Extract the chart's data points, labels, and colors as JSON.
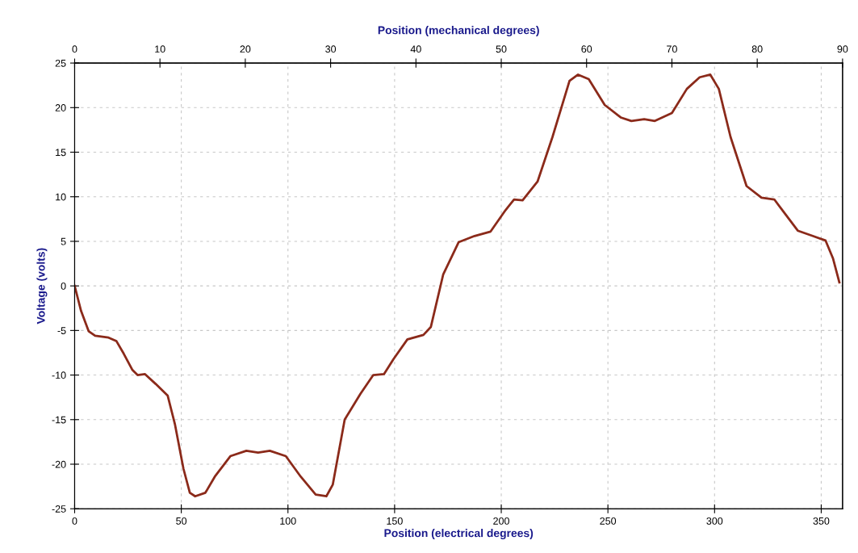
{
  "chart_data": {
    "type": "line",
    "xlabel": "Position (electrical degrees)",
    "ylabel": "Voltage (volts)",
    "x2label": "Position (mechanical degrees)",
    "xlim": [
      0,
      360
    ],
    "xticks": [
      0,
      50,
      100,
      150,
      200,
      250,
      300,
      350
    ],
    "x2lim": [
      0,
      90
    ],
    "x2ticks": [
      0,
      10,
      20,
      30,
      40,
      50,
      60,
      70,
      80,
      90
    ],
    "ylim": [
      -25,
      25
    ],
    "yticks": [
      -25,
      -20,
      -15,
      -10,
      -5,
      0,
      5,
      10,
      15,
      20,
      25
    ],
    "grid": true,
    "marker": "none",
    "line_style": "solid",
    "series": [
      {
        "color": "#8b2a1a",
        "x": [
          0,
          3,
          6.6,
          9.6,
          15.9,
          19.6,
          23,
          27,
          29.5,
          33,
          38,
          43.6,
          47,
          51,
          54,
          56.5,
          61.3,
          65.7,
          73,
          80.5,
          86,
          91.5,
          99,
          106,
          113,
          118,
          121,
          126.6,
          134,
          140,
          145,
          149.5,
          156,
          163.5,
          167,
          172.8,
          180,
          187.5,
          195,
          202,
          206,
          210,
          217,
          224,
          232,
          236,
          241,
          248.5,
          256,
          261,
          267,
          272,
          280,
          287,
          293,
          298,
          302,
          307.5,
          315,
          322,
          328,
          333,
          339,
          346,
          352,
          355.5,
          358.5
        ],
        "values": [
          0,
          -2.8,
          -5.1,
          -5.6,
          -5.8,
          -6.2,
          -7.6,
          -9.4,
          -10,
          -9.9,
          -11,
          -12.3,
          -15.5,
          -20.5,
          -23.2,
          -23.6,
          -23.2,
          -21.4,
          -19.1,
          -18.5,
          -18.7,
          -18.5,
          -19.1,
          -21.4,
          -23.4,
          -23.6,
          -22.3,
          -15,
          -12.1,
          -10,
          -9.9,
          -8.2,
          -6,
          -5.5,
          -4.6,
          1.3,
          4.9,
          5.6,
          6.1,
          8.5,
          9.7,
          9.6,
          11.7,
          16.7,
          23,
          23.7,
          23.2,
          20.3,
          18.9,
          18.5,
          18.7,
          18.5,
          19.4,
          22.1,
          23.4,
          23.7,
          22.1,
          16.7,
          11.2,
          9.9,
          9.7,
          8.1,
          6.2,
          5.6,
          5.1,
          3.1,
          0.4
        ]
      }
    ]
  }
}
